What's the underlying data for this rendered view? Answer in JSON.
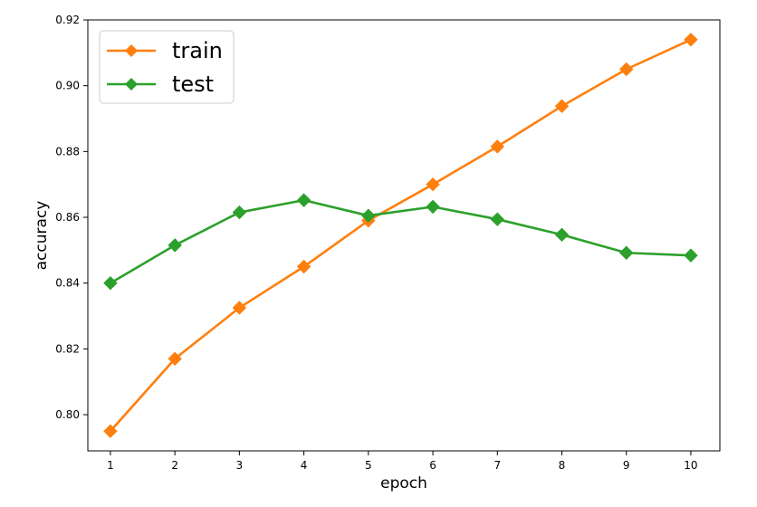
{
  "chart_data": {
    "type": "line",
    "title": "",
    "xlabel": "epoch",
    "ylabel": "accuracy",
    "x": [
      1,
      2,
      3,
      4,
      5,
      6,
      7,
      8,
      9,
      10
    ],
    "xlim": [
      0.65,
      10.45
    ],
    "ylim": [
      0.789,
      0.92
    ],
    "x_ticks": [
      1,
      2,
      3,
      4,
      5,
      6,
      7,
      8,
      9,
      10
    ],
    "y_ticks": [
      0.8,
      0.82,
      0.84,
      0.86,
      0.88,
      0.9,
      0.92
    ],
    "y_tick_labels": [
      "0.80",
      "0.82",
      "0.84",
      "0.86",
      "0.88",
      "0.90",
      "0.92"
    ],
    "grid": false,
    "legend_position": "upper-left",
    "series": [
      {
        "name": "train",
        "color": "#ff7f0e",
        "marker": "diamond",
        "values": [
          0.795,
          0.817,
          0.8325,
          0.845,
          0.859,
          0.87,
          0.8815,
          0.8938,
          0.905,
          0.914
        ]
      },
      {
        "name": "test",
        "color": "#2ca02c",
        "marker": "diamond",
        "values": [
          0.84,
          0.8515,
          0.8615,
          0.8652,
          0.8605,
          0.8632,
          0.8594,
          0.8547,
          0.8492,
          0.8484
        ]
      }
    ]
  }
}
